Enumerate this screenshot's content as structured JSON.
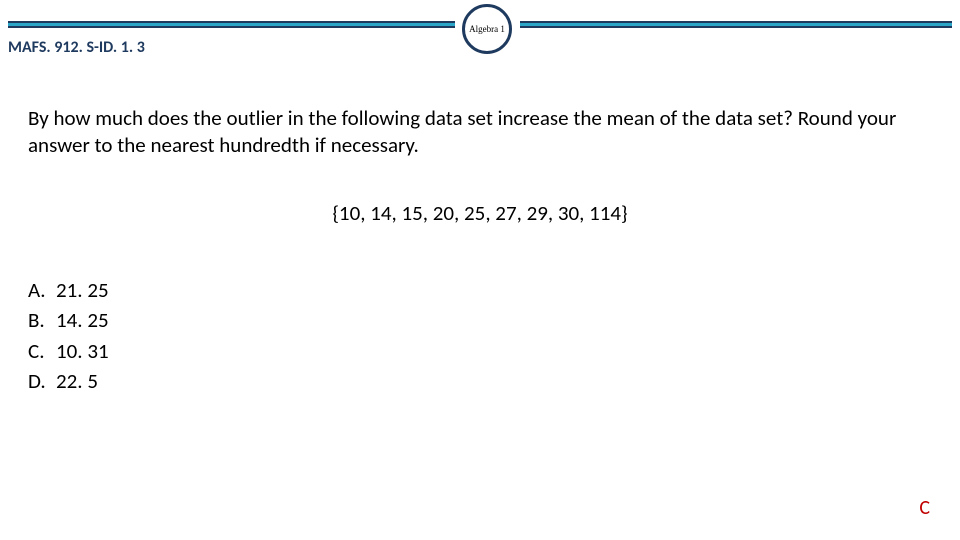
{
  "header": {
    "badge_label": "Algebra 1",
    "standard_code": "MAFS. 912. S-ID. 1. 3",
    "bar_color": "#2aa7c8",
    "border_color": "#1f3a5f"
  },
  "question": {
    "prompt": "By how much does the outlier in the following data set increase the mean of the data set? Round your answer to the nearest hundredth if necessary.",
    "data_set": "{10, 14, 15, 20, 25, 27, 29, 30, 114}"
  },
  "options": [
    {
      "letter": "A.",
      "value": "21. 25"
    },
    {
      "letter": "B.",
      "value": "14. 25"
    },
    {
      "letter": "C.",
      "value": "10. 31"
    },
    {
      "letter": "D.",
      "value": "22. 5"
    }
  ],
  "answer": "C",
  "colors": {
    "answer_color": "#c00000",
    "text_color": "#000000",
    "code_color": "#1f3a5f"
  }
}
